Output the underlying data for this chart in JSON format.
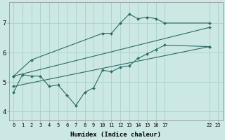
{
  "xlabel": "Humidex (Indice chaleur)",
  "bg_color": "#cce8e5",
  "grid_color": "#aacfcc",
  "line_color": "#2a6b65",
  "xlim": [
    -0.5,
    23.5
  ],
  "ylim": [
    3.7,
    7.7
  ],
  "xtick_positions": [
    0,
    1,
    2,
    3,
    4,
    5,
    6,
    7,
    8,
    9,
    10,
    11,
    12,
    13,
    14,
    15,
    16,
    17,
    22,
    23
  ],
  "xtick_labels": [
    "0",
    "1",
    "2",
    "3",
    "4",
    "5",
    "6",
    "7",
    "8",
    "9",
    "10",
    "11",
    "12",
    "13",
    "14",
    "15",
    "16",
    "17",
    "22",
    "23"
  ],
  "ytick_positions": [
    4,
    5,
    6,
    7
  ],
  "series": [
    {
      "x": [
        0,
        1,
        2,
        3,
        4,
        5,
        6,
        7,
        8,
        9,
        10,
        11,
        12,
        13,
        14,
        15,
        16,
        17,
        22
      ],
      "y": [
        4.65,
        5.25,
        5.2,
        5.2,
        4.85,
        4.9,
        4.55,
        4.2,
        4.65,
        4.8,
        5.4,
        5.35,
        5.5,
        5.55,
        5.8,
        5.95,
        6.1,
        6.25,
        6.2
      ]
    },
    {
      "x": [
        0,
        2,
        10,
        11,
        12,
        13,
        14,
        15,
        16,
        17,
        22
      ],
      "y": [
        5.2,
        5.75,
        6.65,
        6.65,
        7.0,
        7.3,
        7.15,
        7.2,
        7.15,
        7.0,
        7.0
      ]
    },
    {
      "x": [
        0,
        22
      ],
      "y": [
        5.2,
        6.85
      ]
    },
    {
      "x": [
        0,
        22
      ],
      "y": [
        4.85,
        6.2
      ]
    }
  ]
}
